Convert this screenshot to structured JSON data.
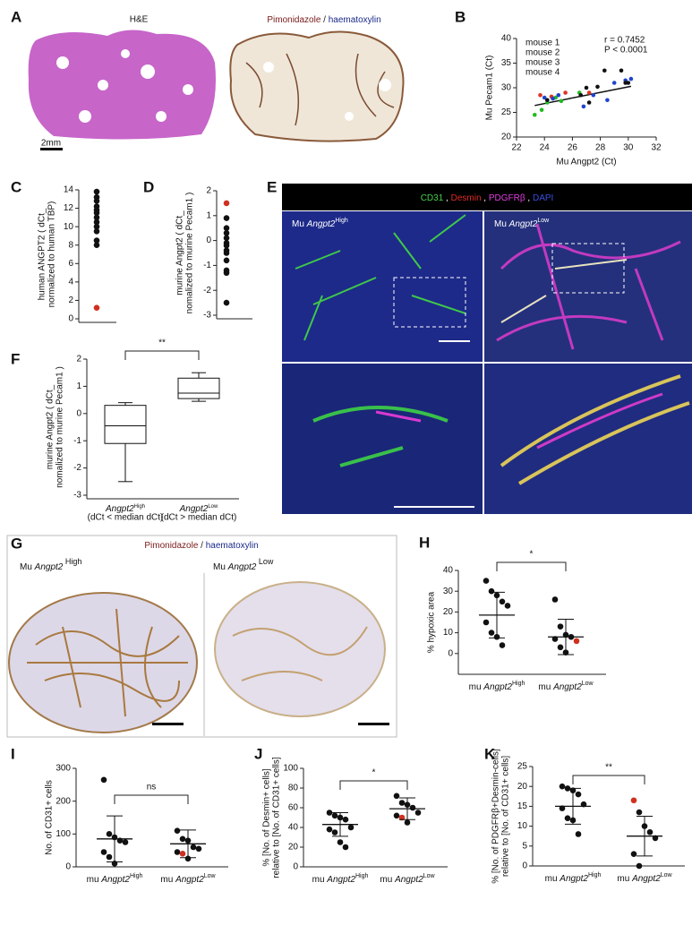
{
  "images": {
    "panel_a": {
      "letter": "A",
      "he_label": "H&E",
      "stain_label": [
        "Pimonidazole",
        " / ",
        "haematoxylin"
      ],
      "scale": "2mm"
    },
    "panel_e": {
      "letter": "E",
      "markers": [
        "CD31",
        " , ",
        "Desmin",
        " , ",
        "PDGFRβ",
        " , ",
        "DAPI"
      ],
      "left": [
        "Mu ",
        "Angpt2",
        "High"
      ],
      "right": [
        "Mu ",
        "Angpt2",
        "Low"
      ]
    },
    "panel_g": {
      "letter": "G",
      "stain_label": [
        "Pimonidazole",
        " / ",
        "haematoxylin"
      ],
      "left": [
        "Mu ",
        "Angpt2",
        " High"
      ],
      "right": [
        "Mu ",
        "Angpt2",
        " Low"
      ]
    }
  },
  "chart_data": [
    {
      "type": "scatter",
      "panel": "B",
      "xlabel": "Mu Angpt2 (Ct)",
      "ylabel": [
        "Mu Pecam1 (Ct)"
      ],
      "xlim": [
        22,
        32
      ],
      "xticks": [
        22,
        24,
        26,
        28,
        30,
        32
      ],
      "ylim": [
        20,
        40
      ],
      "yticks": [
        20,
        25,
        30,
        35,
        40
      ],
      "annotations": [
        "r = 0.7452",
        "P < 0.0001"
      ],
      "fit_line": {
        "x": [
          23.3,
          30.2
        ],
        "y": [
          26.4,
          30.3
        ]
      },
      "series": [
        {
          "name": "mouse 1",
          "color": "#22bb22",
          "x": [
            23.3,
            23.8,
            24.2,
            24.8,
            25.2,
            26.5
          ],
          "y": [
            24.5,
            25.5,
            27,
            28,
            27.3,
            29
          ]
        },
        {
          "name": "mouse 2",
          "color": "#dd3322",
          "x": [
            23.7,
            24.5,
            25.5,
            27.2
          ],
          "y": [
            28.5,
            28.2,
            29,
            29
          ]
        },
        {
          "name": "mouse 3",
          "color": "#2244cc",
          "x": [
            24,
            24.6,
            25,
            26.8,
            27.5,
            28.5,
            29,
            29.8,
            30.2
          ],
          "y": [
            28,
            27.8,
            28.5,
            26.2,
            28.5,
            27.5,
            31,
            31.5,
            31.8
          ]
        },
        {
          "name": "mouse 4",
          "color": "#111111",
          "x": [
            24.2,
            26.6,
            27,
            27.8,
            28.3,
            29.5,
            29.8,
            30,
            27.2
          ],
          "y": [
            27.5,
            28.5,
            30,
            30.2,
            33.5,
            33.5,
            31,
            31,
            27
          ]
        }
      ]
    },
    {
      "type": "dot_column",
      "panel": "C",
      "ylabel": [
        "human ANGPT2 ( dCt_",
        "normalized to human TBP)"
      ],
      "ylim": [
        0,
        14
      ],
      "yticks": [
        0,
        2,
        4,
        6,
        8,
        10,
        12,
        14
      ],
      "values": [
        13.8,
        13.2,
        12.8,
        12.2,
        11.8,
        11.5,
        11,
        10.5,
        10,
        9.5,
        8.5,
        8,
        1.2
      ],
      "point_colors": [
        "#111",
        "#111",
        "#111",
        "#111",
        "#111",
        "#111",
        "#111",
        "#111",
        "#111",
        "#111",
        "#111",
        "#111",
        "#d03020"
      ]
    },
    {
      "type": "dot_column",
      "panel": "D",
      "ylabel": [
        "murine Angpt2 ( dCt_",
        "nomalized to murine Pecam1 )"
      ],
      "ylim": [
        -3,
        2
      ],
      "yticks": [
        -3,
        -2,
        -1,
        0,
        1,
        2
      ],
      "values": [
        1.5,
        0.9,
        0.5,
        0.3,
        0.1,
        -0.1,
        -0.2,
        -0.4,
        -0.5,
        -0.8,
        -1.2,
        -1.3,
        -2.5
      ],
      "point_colors": [
        "#d03020",
        "#111",
        "#111",
        "#111",
        "#111",
        "#111",
        "#111",
        "#111",
        "#111",
        "#111",
        "#111",
        "#111",
        "#111"
      ]
    },
    {
      "type": "box",
      "panel": "F",
      "ylabel": [
        "murine Angpt2 ( dCt_",
        "nomalized to murine Pecam1 )"
      ],
      "ylim": [
        -3,
        2
      ],
      "yticks": [
        -3,
        -2,
        -1,
        0,
        1,
        2
      ],
      "significance": "**",
      "categories": [
        {
          "name": [
            "Angpt2",
            "High"
          ],
          "note": "(dCt < median dCt)"
        },
        {
          "name": [
            "Angpt2",
            "Low"
          ],
          "note": "(dCt > median dCt)"
        }
      ],
      "boxes": [
        {
          "min": -2.5,
          "q1": -1.1,
          "median": -0.45,
          "q3": 0.3,
          "max": 0.4
        },
        {
          "min": 0.45,
          "q1": 0.55,
          "median": 0.75,
          "q3": 1.3,
          "max": 1.5
        }
      ]
    },
    {
      "type": "dot_group",
      "panel": "H",
      "ylabel": [
        "% hypoxic area"
      ],
      "ylim": [
        -10,
        40
      ],
      "yticks": [
        0,
        10,
        20,
        30,
        40
      ],
      "significance": "*",
      "categories": [
        [
          "mu ",
          "Angpt2",
          "High"
        ],
        [
          "mu ",
          "Angpt2",
          "Low"
        ]
      ],
      "groups": [
        {
          "values": [
            35,
            30,
            28,
            25,
            23,
            15,
            10,
            8,
            4
          ],
          "mean": 18.5,
          "sd": 11,
          "point_colors": [
            "#111",
            "#111",
            "#111",
            "#111",
            "#111",
            "#111",
            "#111",
            "#111",
            "#111"
          ]
        },
        {
          "values": [
            26,
            13,
            9,
            8,
            6,
            7,
            3,
            0.5
          ],
          "mean": 8,
          "sd": 8.5,
          "point_colors": [
            "#111",
            "#111",
            "#111",
            "#111",
            "#d03020",
            "#111",
            "#111",
            "#111"
          ]
        }
      ]
    },
    {
      "type": "dot_group",
      "panel": "I",
      "ylabel": [
        "No. of CD31+ cells"
      ],
      "ylim": [
        0,
        300
      ],
      "yticks": [
        0,
        100,
        200,
        300
      ],
      "significance": "ns",
      "categories": [
        [
          "mu ",
          "Angpt2",
          "High"
        ],
        [
          "mu ",
          "Angpt2",
          "Low"
        ]
      ],
      "groups": [
        {
          "values": [
            265,
            100,
            90,
            80,
            75,
            45,
            30,
            10
          ],
          "mean": 85,
          "sd": 70,
          "point_colors": [
            "#111",
            "#111",
            "#111",
            "#111",
            "#111",
            "#111",
            "#111",
            "#111"
          ]
        },
        {
          "values": [
            110,
            85,
            80,
            60,
            55,
            45,
            40,
            25
          ],
          "mean": 70,
          "sd": 42,
          "point_colors": [
            "#111",
            "#111",
            "#111",
            "#111",
            "#111",
            "#111",
            "#d03020",
            "#111"
          ]
        }
      ]
    },
    {
      "type": "dot_group",
      "panel": "J",
      "ylabel": [
        "% [No. of Desmin+ cells]",
        "relative to [No. of CD31+ cells]"
      ],
      "ylim": [
        0,
        100
      ],
      "yticks": [
        0,
        20,
        40,
        60,
        80,
        100
      ],
      "significance": "*",
      "categories": [
        [
          "mu ",
          "Angpt2",
          "High"
        ],
        [
          "mu ",
          "Angpt2",
          "Low"
        ]
      ],
      "groups": [
        {
          "values": [
            55,
            52,
            50,
            48,
            40,
            38,
            35,
            25,
            20
          ],
          "mean": 43,
          "sd": 12,
          "point_colors": [
            "#111",
            "#111",
            "#111",
            "#111",
            "#111",
            "#111",
            "#111",
            "#111",
            "#111"
          ]
        },
        {
          "values": [
            72,
            65,
            63,
            60,
            55,
            52,
            50,
            45
          ],
          "mean": 59,
          "sd": 11,
          "point_colors": [
            "#111",
            "#111",
            "#111",
            "#111",
            "#111",
            "#111",
            "#d03020",
            "#111"
          ]
        }
      ]
    },
    {
      "type": "dot_group",
      "panel": "K",
      "ylabel": [
        "% [No. of PDGFRβ+Desmin-cells]",
        "relative to [No. of CD31+ cells]"
      ],
      "ylim": [
        0,
        25
      ],
      "yticks": [
        0,
        5,
        10,
        15,
        20,
        25
      ],
      "significance": "**",
      "categories": [
        [
          "mu ",
          "Angpt2",
          "High"
        ],
        [
          "mu ",
          "Angpt2",
          "Low"
        ]
      ],
      "groups": [
        {
          "values": [
            20,
            19.5,
            19,
            18,
            15.5,
            14.5,
            12,
            11.5,
            8
          ],
          "mean": 15,
          "sd": 4.5,
          "point_colors": [
            "#111",
            "#111",
            "#111",
            "#111",
            "#111",
            "#111",
            "#111",
            "#111",
            "#111"
          ]
        },
        {
          "values": [
            16.5,
            13.5,
            10,
            8.5,
            7,
            3,
            0
          ],
          "mean": 7.5,
          "sd": 5,
          "point_colors": [
            "#d03020",
            "#111",
            "#111",
            "#111",
            "#111",
            "#111",
            "#111"
          ]
        }
      ]
    }
  ]
}
